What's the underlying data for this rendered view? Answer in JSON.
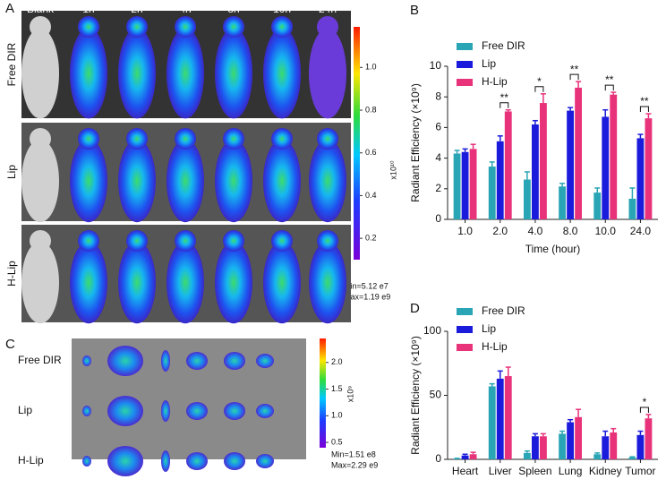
{
  "figure": {
    "panel_a": {
      "label": "A",
      "columns": [
        "Blank",
        "1h",
        "2h",
        "4h",
        "8h",
        "10h",
        "24h"
      ],
      "rows": [
        "Free DIR",
        "Lip",
        "H-Lip"
      ],
      "colorbar": {
        "unit": "x10¹⁰",
        "clim": [
          0.1,
          1.19
        ],
        "ticks": [
          0.2,
          0.4,
          0.6,
          0.8,
          {
            "value": 1,
            "label": "1.0"
          }
        ]
      },
      "min_text": "Min=5.12 e7",
      "max_text": "Max=1.19 e9"
    },
    "panel_c": {
      "label": "C",
      "rows": [
        "Free DIR",
        "Lip",
        "H-Lip"
      ],
      "colorbar": {
        "unit": "x10⁹",
        "clim": [
          0.4,
          2.45
        ],
        "ticks": [
          0.5,
          {
            "value": 1,
            "label": "1.0"
          },
          1.5,
          {
            "value": 2,
            "label": "2.0"
          }
        ]
      },
      "min_text": "Min=1.51 e8",
      "max_text": "Max=2.29 e9"
    }
  },
  "chart_data": [
    {
      "label": "B",
      "type": "bar",
      "y_label": "Radiant Efficiency (×10⁹)",
      "x_label": "Time (hour)",
      "categories": [
        "1.0",
        "2.0",
        "4.0",
        "8.0",
        "10.0",
        "24.0"
      ],
      "series": [
        {
          "name": "Free DIR",
          "color": "#2aa5b5",
          "values": [
            4.3,
            3.45,
            2.6,
            2.15,
            1.75,
            1.35
          ],
          "errors": [
            0.2,
            0.3,
            0.5,
            0.2,
            0.3,
            0.7
          ]
        },
        {
          "name": "Lip",
          "color": "#1b1bdc",
          "values": [
            4.4,
            5.1,
            6.2,
            7.1,
            6.7,
            5.3
          ],
          "errors": [
            0.2,
            0.35,
            0.25,
            0.2,
            0.45,
            0.25
          ]
        },
        {
          "name": "H-Lip",
          "color": "#e8327a",
          "values": [
            4.6,
            7.05,
            7.6,
            8.6,
            8.15,
            6.6
          ],
          "errors": [
            0.3,
            0.1,
            0.6,
            0.4,
            0.15,
            0.3
          ]
        }
      ],
      "ylim": [
        0,
        10
      ],
      "yticks": [
        0,
        2,
        4,
        6,
        8,
        10
      ],
      "legend": "upper left",
      "annotations": [
        {
          "category": "2.0",
          "text": "**"
        },
        {
          "category": "4.0",
          "text": "*"
        },
        {
          "category": "8.0",
          "text": "**"
        },
        {
          "category": "10.0",
          "text": "**"
        },
        {
          "category": "24.0",
          "text": "**"
        }
      ]
    },
    {
      "label": "D",
      "type": "bar",
      "y_label": "Radiant Efficiency (×10⁹)",
      "categories": [
        "Heart",
        "Liver",
        "Spleen",
        "Lung",
        "Kidney",
        "Tumor"
      ],
      "series": [
        {
          "name": "Free DIR",
          "color": "#2aa5b5",
          "values": [
            0.5,
            57,
            5,
            20,
            4,
            1.5
          ],
          "errors": [
            0.3,
            2,
            1.5,
            2,
            1,
            0.5
          ]
        },
        {
          "name": "Lip",
          "color": "#1b1bdc",
          "values": [
            3,
            63,
            18,
            29,
            18,
            19
          ],
          "errors": [
            1,
            6,
            2,
            2,
            4,
            3
          ]
        },
        {
          "name": "H-Lip",
          "color": "#e8327a",
          "values": [
            4,
            65,
            18,
            33,
            21,
            32
          ],
          "errors": [
            1.5,
            7,
            2,
            6,
            3,
            3
          ]
        }
      ],
      "ylim": [
        0,
        100
      ],
      "yticks": [
        0,
        50,
        100
      ],
      "legend": "upper left",
      "annotations": [
        {
          "category": "Tumor",
          "text": "*"
        }
      ]
    }
  ]
}
